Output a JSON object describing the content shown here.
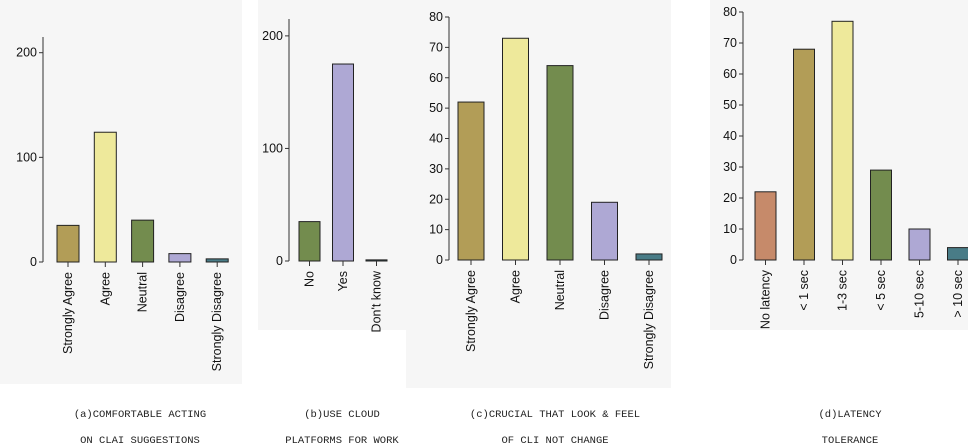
{
  "chart_data": [
    {
      "type": "bar",
      "categories": [
        "Strongly Agree",
        "Agree",
        "Neutral",
        "Disagree",
        "Strongly Disagree"
      ],
      "values": [
        35,
        124,
        40,
        8,
        3
      ],
      "colors": [
        "#b29d57",
        "#eee99b",
        "#738c4e",
        "#aea8d4",
        "#497c87"
      ],
      "ylim": [
        0,
        215
      ],
      "yticks": [
        0,
        100,
        200
      ],
      "caption_tag": "(a)",
      "caption_lines": [
        "COMFORTABLE ACTING",
        "ON CLAI SUGGESTIONS"
      ]
    },
    {
      "type": "bar",
      "categories": [
        "No",
        "Yes",
        "Don't know"
      ],
      "values": [
        35,
        175,
        1
      ],
      "colors": [
        "#738c4e",
        "#aea8d4",
        "#497c87"
      ],
      "ylim": [
        0,
        215
      ],
      "yticks": [
        0,
        100,
        200
      ],
      "caption_tag": "(b)",
      "caption_lines": [
        "USE CLOUD",
        "PLATFORMS FOR WORK"
      ]
    },
    {
      "type": "bar",
      "categories": [
        "Strongly Agree",
        "Agree",
        "Neutral",
        "Disagree",
        "Strongly Disagree"
      ],
      "values": [
        52,
        73,
        64,
        19,
        2
      ],
      "colors": [
        "#b29d57",
        "#eee99b",
        "#738c4e",
        "#aea8d4",
        "#497c87"
      ],
      "ylim": [
        0,
        80
      ],
      "yticks": [
        0,
        10,
        20,
        30,
        40,
        50,
        60,
        70,
        80
      ],
      "caption_tag": "(c)",
      "caption_lines": [
        "CRUCIAL THAT LOOK & FEEL",
        "OF CLI NOT CHANGE"
      ]
    },
    {
      "type": "bar",
      "categories": [
        "No latency",
        "< 1 sec",
        "1-3 sec",
        "< 5 sec",
        "5-10 sec",
        "> 10 sec"
      ],
      "values": [
        22,
        68,
        77,
        29,
        10,
        4
      ],
      "colors": [
        "#c68a6a",
        "#b29d57",
        "#eee99b",
        "#738c4e",
        "#aea8d4",
        "#497c87"
      ],
      "ylim": [
        0,
        80
      ],
      "yticks": [
        0,
        10,
        20,
        30,
        40,
        50,
        60,
        70,
        80
      ],
      "caption_tag": "(d)",
      "caption_lines": [
        "LATENCY",
        "TOLERANCE"
      ]
    }
  ]
}
